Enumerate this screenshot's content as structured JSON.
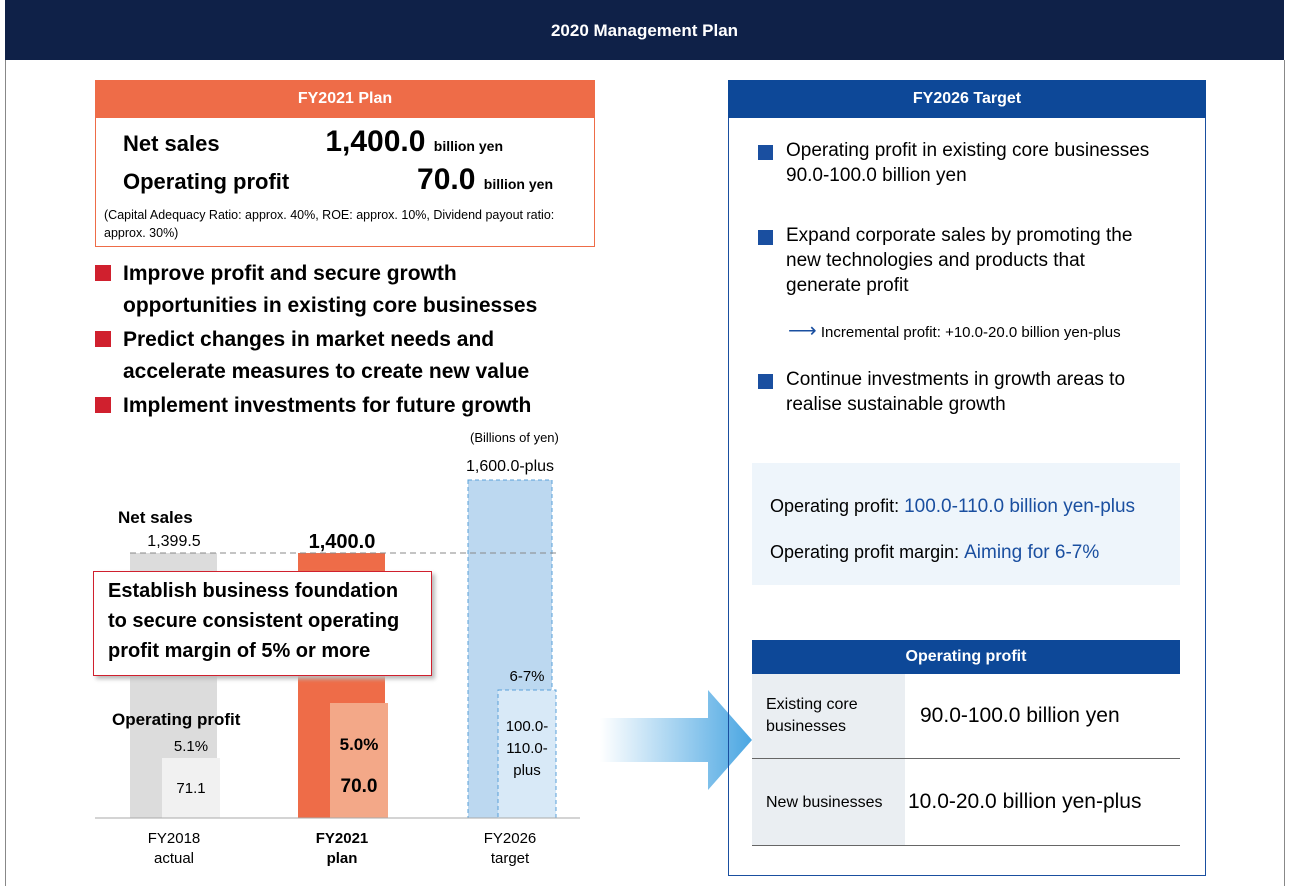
{
  "header": {
    "title": "2020 Management Plan"
  },
  "plan": {
    "title": "FY2021 Plan",
    "rows": [
      {
        "label": "Net sales",
        "value": "1,400.0",
        "unit": "billion yen"
      },
      {
        "label": "Operating profit",
        "value": "70.0",
        "unit": "billion yen"
      }
    ],
    "note": "(Capital Adequacy Ratio: approx. 40%, ROE: approx. 10%, Dividend payout ratio: approx. 30%)"
  },
  "left_bullets": [
    "Improve profit and secure growth opportunities in existing core businesses",
    "Predict changes in market needs and accelerate measures to create new value",
    "Implement investments for future growth"
  ],
  "chart": {
    "unit_note": "(Billions of yen)",
    "net_sales_label": "Net sales",
    "operating_profit_label": "Operating profit",
    "columns": [
      {
        "label": [
          "FY2018",
          "actual"
        ],
        "net_sales": "1,399.5",
        "margin": "5.1%",
        "operating_profit": "71.1"
      },
      {
        "label": [
          "FY2021",
          "plan"
        ],
        "net_sales": "1,400.0",
        "margin": "5.0%",
        "operating_profit": "70.0"
      },
      {
        "label": [
          "FY2026",
          "target"
        ],
        "net_sales": "1,600.0-plus",
        "margin": "6-7%",
        "operating_profit": [
          "100.0-",
          "110.0-",
          "plus"
        ]
      }
    ],
    "callout": [
      "Establish business foundation",
      "to secure consistent operating",
      "profit margin of 5% or more"
    ]
  },
  "target": {
    "title": "FY2026 Target",
    "bullets": [
      [
        "Operating profit in existing core businesses",
        "90.0-100.0 billion yen"
      ],
      [
        "Expand corporate sales by promoting the",
        "new technologies and products that",
        "generate profit"
      ],
      [
        "Continue investments in growth areas to",
        "realise sustainable growth"
      ]
    ],
    "incremental": "Incremental profit: +10.0-20.0 billion yen-plus",
    "summary": [
      {
        "label": "Operating profit: ",
        "value": "100.0-110.0 billion yen-plus"
      },
      {
        "label": "Operating profit margin: ",
        "value": "Aiming for 6-7%"
      }
    ],
    "table": {
      "header": "Operating profit",
      "rows": [
        [
          "Existing core businesses",
          "90.0-100.0 billion yen"
        ],
        [
          "New businesses",
          "10.0-20.0 billion yen-plus"
        ]
      ]
    }
  }
}
